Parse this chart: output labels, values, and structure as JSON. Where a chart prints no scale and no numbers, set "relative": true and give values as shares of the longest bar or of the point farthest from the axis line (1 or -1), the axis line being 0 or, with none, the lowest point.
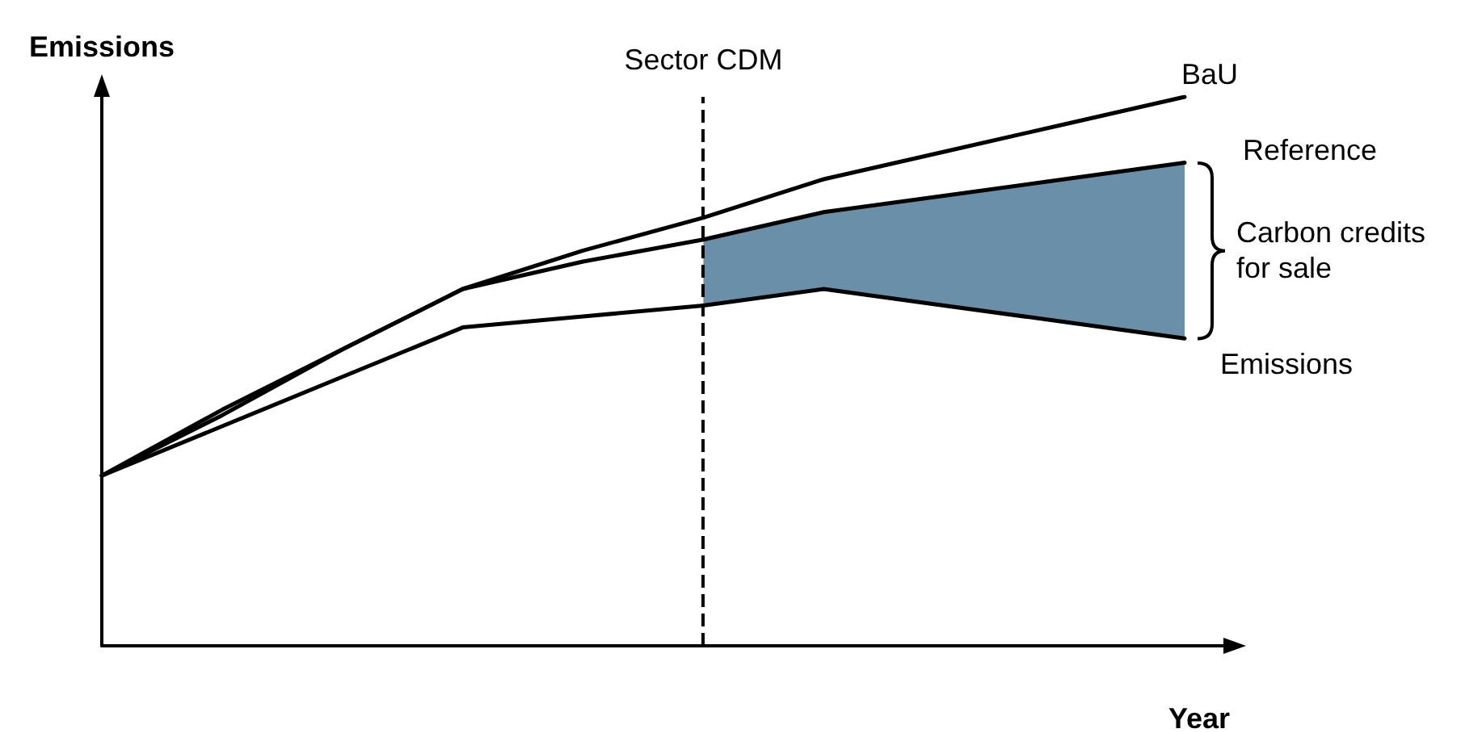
{
  "chart_data": {
    "type": "line",
    "relative": true,
    "xlabel": "Year",
    "ylabel": "Emissions",
    "categories": [
      null,
      null,
      null,
      null,
      null,
      null,
      null,
      null,
      null,
      null
    ],
    "series": [
      {
        "name": "BaU",
        "color": "#000000",
        "values": [
          0.31,
          0.43,
          0.54,
          0.65,
          0.72,
          0.78,
          0.85,
          0.9,
          0.95,
          1.0
        ]
      },
      {
        "name": "Reference",
        "color": "#000000",
        "values": [
          0.31,
          0.42,
          0.54,
          0.65,
          0.7,
          0.74,
          0.79,
          0.82,
          0.85,
          0.88
        ],
        "upper": [
          null,
          null,
          null,
          null,
          null,
          0.74,
          0.79,
          0.82,
          0.85,
          0.88
        ],
        "lower": [
          null,
          null,
          null,
          null,
          null,
          0.62,
          0.65,
          0.62,
          0.59,
          0.56
        ]
      },
      {
        "name": "Emissions",
        "color": "#000000",
        "values": [
          0.31,
          0.4,
          0.49,
          0.58,
          0.6,
          0.62,
          0.65,
          0.62,
          0.59,
          0.56
        ]
      }
    ],
    "annotations": [
      "Sector CDM",
      "Carbon credits for sale"
    ],
    "legend": false,
    "grid": false,
    "marker": "none",
    "line_style": "solid"
  }
}
